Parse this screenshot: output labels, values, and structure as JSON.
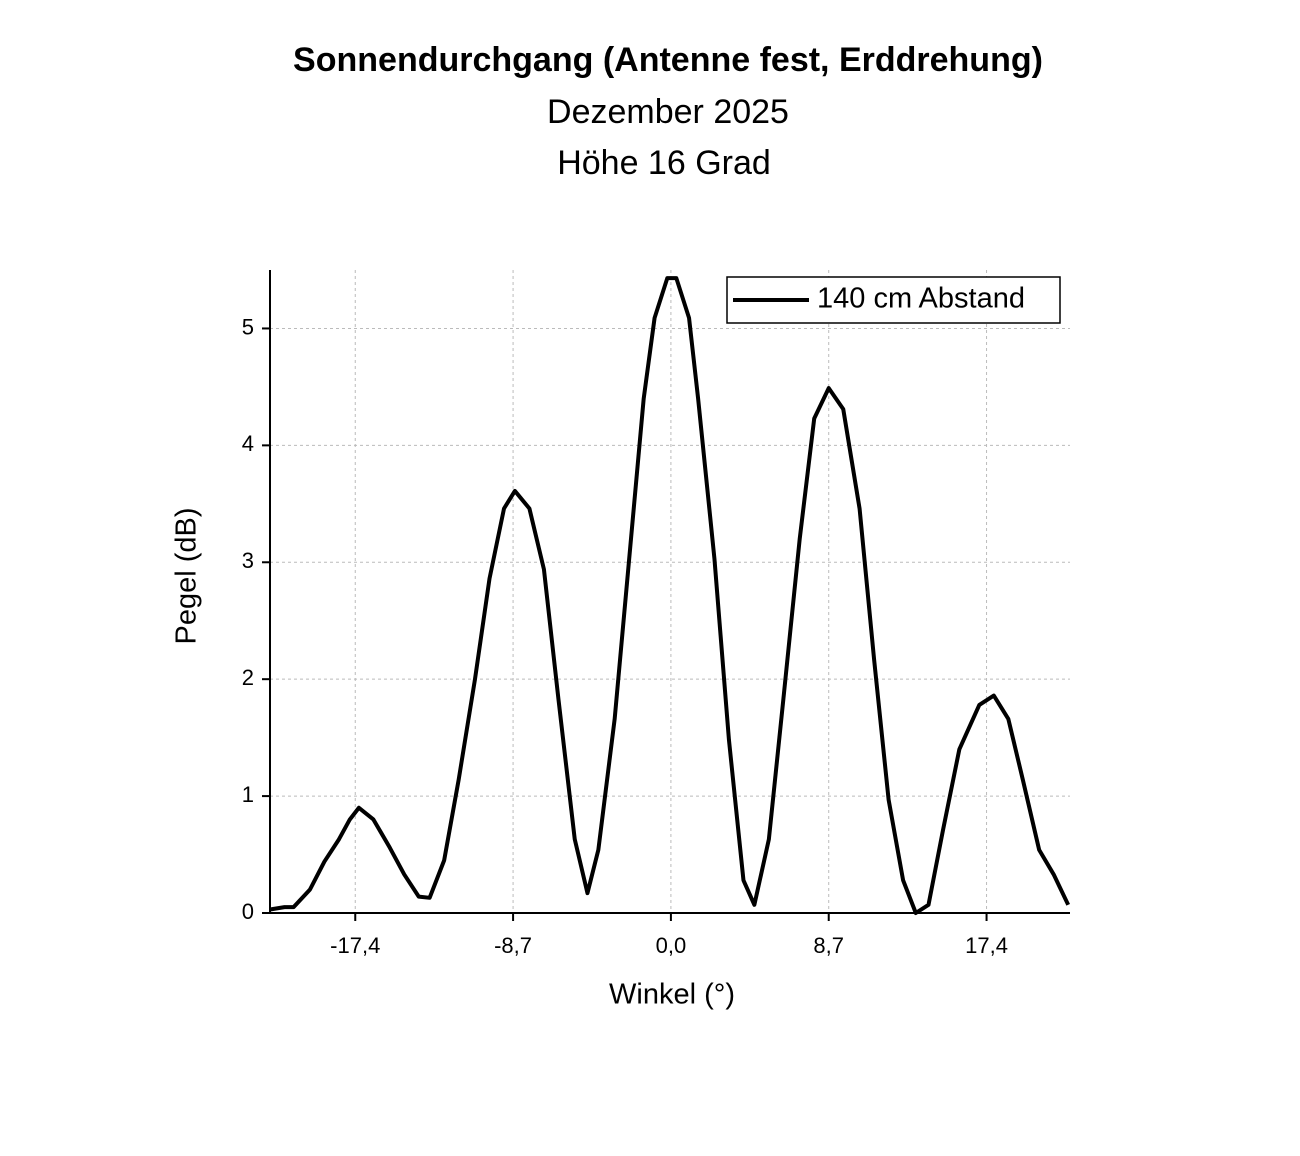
{
  "chart_data": {
    "type": "line",
    "title": "Sonnendurchgang (Antenne fest, Erddrehung)",
    "subtitle": [
      "Dezember 2025",
      "Höhe 16 Grad"
    ],
    "x_label": "Winkel (°)",
    "y_label": "Pegel (dB)",
    "x": [
      -22.1,
      -21.3,
      -20.8,
      -19.9,
      -19.1,
      -18.3,
      -17.7,
      -17.2,
      -16.4,
      -15.5,
      -14.7,
      -13.9,
      -13.3,
      -12.5,
      -11.7,
      -10.8,
      -10.0,
      -9.2,
      -8.6,
      -7.8,
      -7.0,
      -6.2,
      -5.3,
      -4.6,
      -4.0,
      -3.1,
      -2.3,
      -1.5,
      -0.9,
      -0.2,
      0.3,
      1.0,
      1.5,
      2.4,
      3.2,
      4.0,
      4.6,
      5.4,
      6.2,
      7.1,
      7.9,
      8.7,
      9.5,
      10.4,
      11.2,
      12.0,
      12.8,
      13.5,
      14.2,
      15.0,
      15.9,
      17.0,
      17.8,
      18.6,
      19.4,
      20.3,
      21.1,
      21.9
    ],
    "series": [
      {
        "name": "140 cm Abstand",
        "color": "#000000",
        "values": [
          0.03,
          0.05,
          0.05,
          0.2,
          0.44,
          0.63,
          0.8,
          0.9,
          0.8,
          0.56,
          0.33,
          0.14,
          0.13,
          0.45,
          1.14,
          2.0,
          2.86,
          3.46,
          3.61,
          3.46,
          2.94,
          1.83,
          0.63,
          0.17,
          0.54,
          1.66,
          3.03,
          4.4,
          5.09,
          5.43,
          5.43,
          5.09,
          4.4,
          3.03,
          1.48,
          0.28,
          0.07,
          0.63,
          1.83,
          3.2,
          4.23,
          4.49,
          4.31,
          3.46,
          2.17,
          0.97,
          0.28,
          0.0,
          0.07,
          0.71,
          1.4,
          1.78,
          1.86,
          1.66,
          1.14,
          0.54,
          0.33,
          0.07
        ]
      }
    ],
    "xlim": [
      -22.1,
      22.0
    ],
    "ylim": [
      0,
      5.5
    ],
    "xticks": [
      {
        "value": -17.4,
        "label": "-17,4"
      },
      {
        "value": -8.7,
        "label": "-8,7"
      },
      {
        "value": 0.0,
        "label": "0,0"
      },
      {
        "value": 8.7,
        "label": "8,7"
      },
      {
        "value": 17.4,
        "label": "17,4"
      }
    ],
    "yticks": [
      0,
      1,
      2,
      3,
      4,
      5
    ],
    "grid": true,
    "legend": "upper right"
  }
}
